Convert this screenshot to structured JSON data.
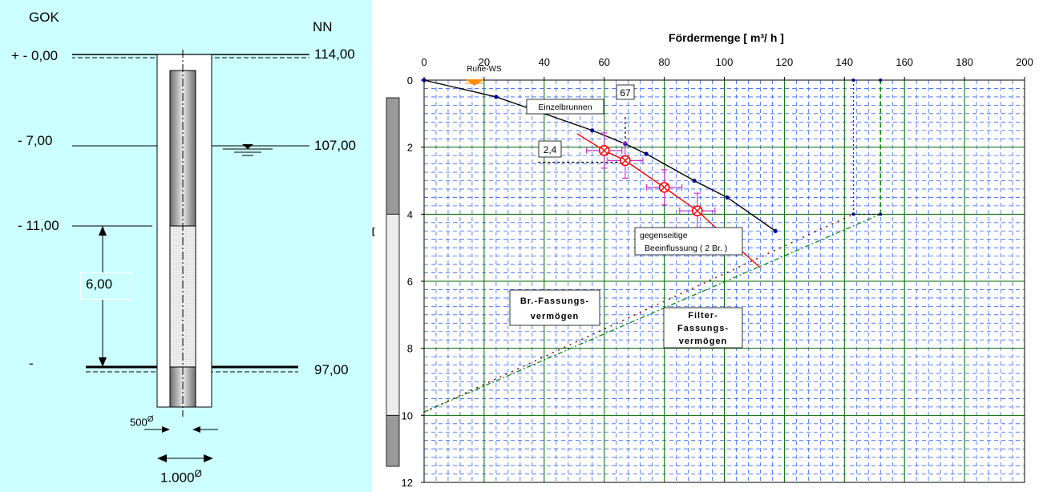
{
  "left_panel": {
    "header_left": "GOK",
    "header_right": "NN",
    "depth_labels": [
      "+ - 0,00",
      "- 7,00",
      "- 11,00",
      "-"
    ],
    "level_labels": [
      "114,00",
      "107,00",
      "97,00"
    ],
    "filter_length": "6,00",
    "inner_diameter": "500",
    "outer_diameter": "1.000",
    "diameter_symbol": "Ø",
    "colors": {
      "background": "#ccffff",
      "casing": "#808080",
      "filter": "#e0e0e0"
    }
  },
  "chart_data": {
    "type": "line",
    "title": "Fördermenge   [ m³/ h ]",
    "x_ticks": [
      "0",
      "20",
      "40",
      "60",
      "80",
      "100",
      "120",
      "140",
      "160",
      "180",
      "200"
    ],
    "y_ticks": [
      "0",
      "2",
      "4",
      "6",
      "8",
      "10",
      "12"
    ],
    "xlim": [
      0,
      200
    ],
    "ylim": [
      0,
      12
    ],
    "y_reversed": true,
    "x_axis_position": "top",
    "grid": true,
    "series": [
      {
        "name": "Einzelbrunnen",
        "color": "#000000",
        "x": [
          0,
          24,
          56,
          67,
          74,
          90,
          101,
          117
        ],
        "y": [
          0,
          0.5,
          1.5,
          1.9,
          2.2,
          3.0,
          3.5,
          4.5
        ]
      },
      {
        "name": "gegenseitige Beeinflussung ( 2 Br. )",
        "color": "#ff0000",
        "x": [
          51,
          60,
          67,
          80,
          91,
          112
        ],
        "y": [
          1.6,
          2.1,
          2.4,
          3.2,
          3.9,
          5.6
        ],
        "points": [
          [
            60,
            2.1
          ],
          [
            67,
            2.4
          ],
          [
            80,
            3.2
          ],
          [
            91,
            3.9
          ]
        ]
      },
      {
        "name": "Br.-Fassungsvermögen",
        "color": "#8b0000",
        "x": [
          0,
          143,
          143,
          143
        ],
        "y": [
          9.9,
          4.0,
          0,
          4.0
        ]
      },
      {
        "name": "Filter-Fassungsvermögen",
        "color": "#008000",
        "x": [
          0,
          152,
          152
        ],
        "y": [
          9.9,
          4.0,
          0
        ]
      }
    ],
    "annotations": {
      "ruhe_ws": "Ruhe-WS",
      "einzelbrunnen": "Einzelbrunnen",
      "box_67": "67",
      "box_24": "2,4",
      "gegenseitige_line1": "gegenseitige",
      "gegenseitige_line2": "Beeinflussung ( 2 Br. )",
      "br_fassung_line1": "Br.-Fassungs-",
      "br_fassung_line2": "vermögen",
      "filter_fassung_line1": "Filter-",
      "filter_fassung_line2": "Fassungs-",
      "filter_fassung_line3": "vermögen",
      "ylabel_fragment": "["
    },
    "colors": {
      "grid_minor": "#3366ff",
      "grid_major": "#006400",
      "plot_bg": "#ffffff"
    },
    "well_bar": {
      "filter_from": 4,
      "filter_to": 10
    }
  }
}
